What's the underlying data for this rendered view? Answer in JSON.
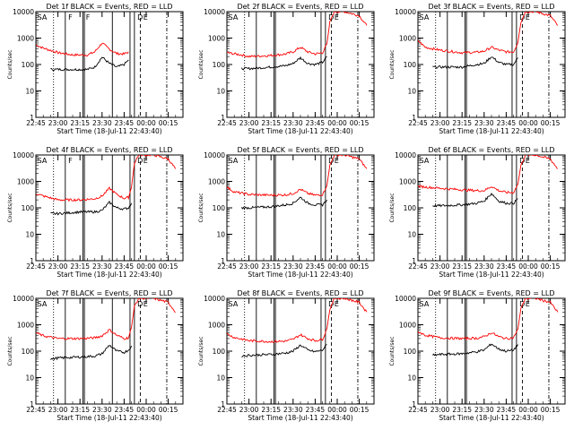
{
  "chart_data": [
    {
      "type": "line",
      "title": "Det 1f BLACK = Events, RED = LLD",
      "xlabel": "Start Time (18-Jul-11 22:43:40)",
      "ylabel": "Counts/sec",
      "yscale": "log",
      "ylim": [
        1,
        10000
      ],
      "xticks": [
        "22:45",
        "23:00",
        "23:15",
        "23:30",
        "23:45",
        "00:00",
        "00:15"
      ],
      "yticks": [
        "1",
        "10",
        "100",
        "1000",
        "10000"
      ],
      "marker_labels": [
        "SA",
        "F",
        "F",
        "D",
        "E"
      ],
      "series": [
        {
          "color": "#ff0000",
          "x": [
            "22:45",
            "22:50",
            "23:00",
            "23:10",
            "23:20",
            "23:25",
            "23:30",
            "23:35",
            "23:40",
            "23:45",
            "23:48"
          ],
          "y": [
            550,
            420,
            280,
            230,
            230,
            300,
            650,
            380,
            260,
            250,
            300
          ]
        },
        {
          "color": "#000000",
          "x": [
            "22:55",
            "23:00",
            "23:10",
            "23:20",
            "23:25",
            "23:30",
            "23:35",
            "23:40",
            "23:45",
            "23:48"
          ],
          "y": [
            65,
            65,
            65,
            65,
            80,
            190,
            110,
            80,
            100,
            150
          ]
        }
      ]
    },
    {
      "type": "line",
      "title": "Det 2f BLACK = Events, RED = LLD",
      "xlabel": "Start Time (18-Jul-11 22:43:40)",
      "ylabel": "Counts/sec",
      "yscale": "log",
      "ylim": [
        1,
        10000
      ],
      "xticks": [
        "22:45",
        "23:00",
        "23:15",
        "23:30",
        "23:45",
        "00:00",
        "00:15"
      ],
      "yticks": [
        "1",
        "10",
        "100",
        "1000",
        "10000"
      ],
      "marker_labels": [
        "SA",
        "D",
        "E"
      ],
      "series": [
        {
          "color": "#ff0000",
          "x": [
            "22:45",
            "22:55",
            "23:00",
            "23:15",
            "23:25",
            "23:30",
            "23:35",
            "23:40",
            "23:45",
            "23:50",
            "23:53",
            "23:55",
            "23:58",
            "00:05",
            "00:15",
            "00:20"
          ],
          "y": [
            280,
            230,
            200,
            220,
            250,
            300,
            450,
            300,
            250,
            280,
            600,
            4000,
            10000,
            10000,
            7000,
            3000
          ]
        },
        {
          "color": "#000000",
          "x": [
            "22:55",
            "23:00",
            "23:15",
            "23:25",
            "23:30",
            "23:35",
            "23:40",
            "23:45",
            "23:50",
            "23:53"
          ],
          "y": [
            70,
            70,
            80,
            90,
            110,
            180,
            110,
            100,
            120,
            200
          ]
        }
      ]
    },
    {
      "type": "line",
      "title": "Det 3f BLACK = Events, RED = LLD",
      "xlabel": "Start Time (18-Jul-11 22:43:40)",
      "ylabel": "Counts/sec",
      "yscale": "log",
      "ylim": [
        1,
        10000
      ],
      "xticks": [
        "22:45",
        "23:00",
        "23:15",
        "23:30",
        "23:45",
        "00:00",
        "00:15"
      ],
      "yticks": [
        "1",
        "10",
        "100",
        "1000",
        "10000"
      ],
      "marker_labels": [
        "SA",
        "D",
        "E"
      ],
      "series": [
        {
          "color": "#ff0000",
          "x": [
            "22:45",
            "22:50",
            "23:00",
            "23:15",
            "23:25",
            "23:30",
            "23:35",
            "23:40",
            "23:45",
            "23:50",
            "23:53",
            "23:55",
            "23:58",
            "00:05",
            "00:15",
            "00:20"
          ],
          "y": [
            800,
            450,
            350,
            280,
            290,
            320,
            450,
            350,
            300,
            300,
            700,
            4000,
            10000,
            10000,
            7000,
            3000
          ]
        },
        {
          "color": "#000000",
          "x": [
            "22:55",
            "23:00",
            "23:15",
            "23:25",
            "23:30",
            "23:35",
            "23:40",
            "23:45",
            "23:50",
            "23:53"
          ],
          "y": [
            80,
            80,
            80,
            100,
            110,
            200,
            120,
            100,
            100,
            180
          ]
        }
      ]
    },
    {
      "type": "line",
      "title": "Det 4f BLACK = Events, RED = LLD",
      "xlabel": "Start Time (18-Jul-11 22:43:40)",
      "ylabel": "Counts/sec",
      "yscale": "log",
      "ylim": [
        1,
        10000
      ],
      "xticks": [
        "22:45",
        "23:00",
        "23:15",
        "23:30",
        "23:45",
        "00:00",
        "00:15"
      ],
      "yticks": [
        "1",
        "10",
        "100",
        "1000",
        "10000"
      ],
      "marker_labels": [
        "SA",
        "F",
        "D",
        "E"
      ],
      "series": [
        {
          "color": "#ff0000",
          "x": [
            "22:45",
            "22:50",
            "23:00",
            "23:15",
            "23:25",
            "23:30",
            "23:35",
            "23:40",
            "23:45",
            "23:48",
            "23:50",
            "23:52",
            "23:55",
            "00:05",
            "00:15",
            "00:20"
          ],
          "y": [
            350,
            280,
            200,
            200,
            220,
            280,
            550,
            320,
            230,
            250,
            600,
            5000,
            10000,
            10000,
            7000,
            3000
          ]
        },
        {
          "color": "#000000",
          "x": [
            "22:55",
            "23:00",
            "23:15",
            "23:25",
            "23:30",
            "23:35",
            "23:40",
            "23:45",
            "23:48",
            "23:50"
          ],
          "y": [
            60,
            60,
            70,
            70,
            80,
            160,
            100,
            90,
            100,
            150
          ]
        }
      ]
    },
    {
      "type": "line",
      "title": "Det 5f BLACK = Events, RED = LLD",
      "xlabel": "Start Time (18-Jul-11 22:43:40)",
      "ylabel": "Counts/sec",
      "yscale": "log",
      "ylim": [
        1,
        10000
      ],
      "xticks": [
        "22:45",
        "23:00",
        "23:15",
        "23:30",
        "23:45",
        "00:00",
        "00:15"
      ],
      "yticks": [
        "1",
        "10",
        "100",
        "1000",
        "10000"
      ],
      "marker_labels": [
        "SA",
        "D",
        "E"
      ],
      "series": [
        {
          "color": "#ff0000",
          "x": [
            "22:45",
            "22:50",
            "23:00",
            "23:15",
            "23:25",
            "23:30",
            "23:35",
            "23:40",
            "23:45",
            "23:50",
            "23:53",
            "23:55",
            "23:58",
            "00:05",
            "00:15",
            "00:20"
          ],
          "y": [
            600,
            400,
            320,
            300,
            310,
            350,
            500,
            350,
            300,
            320,
            700,
            4000,
            10000,
            10000,
            7000,
            3000
          ]
        },
        {
          "color": "#000000",
          "x": [
            "22:55",
            "23:00",
            "23:15",
            "23:25",
            "23:30",
            "23:35",
            "23:40",
            "23:45",
            "23:50",
            "23:53"
          ],
          "y": [
            100,
            100,
            110,
            130,
            150,
            250,
            150,
            130,
            130,
            200
          ]
        }
      ]
    },
    {
      "type": "line",
      "title": "Det 6f BLACK = Events, RED = LLD",
      "xlabel": "Start Time (18-Jul-11 22:43:40)",
      "ylabel": "Counts/sec",
      "yscale": "log",
      "ylim": [
        1,
        10000
      ],
      "xticks": [
        "22:45",
        "23:00",
        "23:15",
        "23:30",
        "23:45",
        "00:00",
        "00:15"
      ],
      "yticks": [
        "1",
        "10",
        "100",
        "1000",
        "10000"
      ],
      "marker_labels": [
        "SA",
        "D",
        "E"
      ],
      "series": [
        {
          "color": "#ff0000",
          "x": [
            "22:45",
            "23:00",
            "23:15",
            "23:25",
            "23:30",
            "23:35",
            "23:40",
            "23:45",
            "23:50",
            "23:53",
            "23:55",
            "23:58",
            "00:05",
            "00:15",
            "00:20"
          ],
          "y": [
            650,
            550,
            480,
            450,
            450,
            650,
            450,
            380,
            380,
            800,
            4000,
            10000,
            10000,
            7000,
            3000
          ]
        },
        {
          "color": "#000000",
          "x": [
            "22:55",
            "23:00",
            "23:15",
            "23:25",
            "23:30",
            "23:35",
            "23:40",
            "23:45",
            "23:50",
            "23:53"
          ],
          "y": [
            120,
            120,
            130,
            150,
            180,
            350,
            180,
            150,
            150,
            220
          ]
        }
      ]
    },
    {
      "type": "line",
      "title": "Det 7f BLACK = Events, RED = LLD",
      "xlabel": "Start Time (18-Jul-11 22:43:40)",
      "ylabel": "Counts/sec",
      "yscale": "log",
      "ylim": [
        1,
        10000
      ],
      "xticks": [
        "22:45",
        "23:00",
        "23:15",
        "23:30",
        "23:45",
        "00:00",
        "00:15"
      ],
      "yticks": [
        "1",
        "10",
        "100",
        "1000",
        "10000"
      ],
      "marker_labels": [
        "SA",
        "D",
        "E"
      ],
      "series": [
        {
          "color": "#ff0000",
          "x": [
            "22:45",
            "22:50",
            "23:00",
            "23:15",
            "23:25",
            "23:30",
            "23:35",
            "23:40",
            "23:45",
            "23:48",
            "23:50",
            "23:52",
            "23:55",
            "00:05",
            "00:15",
            "00:20"
          ],
          "y": [
            500,
            380,
            300,
            300,
            320,
            380,
            650,
            400,
            300,
            320,
            800,
            5000,
            10000,
            10000,
            7000,
            3000
          ]
        },
        {
          "color": "#000000",
          "x": [
            "22:55",
            "23:00",
            "23:15",
            "23:25",
            "23:30",
            "23:35",
            "23:40",
            "23:45",
            "23:48",
            "23:50"
          ],
          "y": [
            50,
            55,
            60,
            65,
            80,
            170,
            100,
            90,
            110,
            160
          ]
        }
      ]
    },
    {
      "type": "line",
      "title": "Det 8f BLACK = Events, RED = LLD",
      "xlabel": "Start Time (18-Jul-11 22:43:40)",
      "ylabel": "Counts/sec",
      "yscale": "log",
      "ylim": [
        1,
        10000
      ],
      "xticks": [
        "22:45",
        "23:00",
        "23:15",
        "23:30",
        "23:45",
        "00:00",
        "00:15"
      ],
      "yticks": [
        "1",
        "10",
        "100",
        "1000",
        "10000"
      ],
      "marker_labels": [
        "SA",
        "D",
        "E"
      ],
      "series": [
        {
          "color": "#ff0000",
          "x": [
            "22:45",
            "22:50",
            "23:00",
            "23:15",
            "23:25",
            "23:30",
            "23:35",
            "23:40",
            "23:45",
            "23:50",
            "23:53",
            "23:55",
            "23:58",
            "00:05",
            "00:15",
            "00:20"
          ],
          "y": [
            450,
            330,
            250,
            230,
            240,
            280,
            420,
            300,
            250,
            280,
            700,
            4000,
            10000,
            10000,
            7000,
            3000
          ]
        },
        {
          "color": "#000000",
          "x": [
            "22:55",
            "23:00",
            "23:15",
            "23:25",
            "23:30",
            "23:35",
            "23:40",
            "23:45",
            "23:50",
            "23:53"
          ],
          "y": [
            65,
            70,
            75,
            85,
            100,
            170,
            110,
            95,
            110,
            180
          ]
        }
      ]
    },
    {
      "type": "line",
      "title": "Det 9f BLACK = Events, RED = LLD",
      "xlabel": "Start Time (18-Jul-11 22:43:40)",
      "ylabel": "Counts/sec",
      "yscale": "log",
      "ylim": [
        1,
        10000
      ],
      "xticks": [
        "22:45",
        "23:00",
        "23:15",
        "23:30",
        "23:45",
        "00:00",
        "00:15"
      ],
      "yticks": [
        "1",
        "10",
        "100",
        "1000",
        "10000"
      ],
      "marker_labels": [
        "SA",
        "D",
        "E"
      ],
      "series": [
        {
          "color": "#ff0000",
          "x": [
            "22:45",
            "22:50",
            "23:00",
            "23:15",
            "23:25",
            "23:30",
            "23:35",
            "23:40",
            "23:45",
            "23:50",
            "23:53",
            "23:55",
            "23:58",
            "00:05",
            "00:15",
            "00:20"
          ],
          "y": [
            550,
            400,
            320,
            300,
            310,
            350,
            500,
            350,
            300,
            320,
            700,
            4000,
            10000,
            10000,
            7000,
            3000
          ]
        },
        {
          "color": "#000000",
          "x": [
            "22:55",
            "23:00",
            "23:15",
            "23:25",
            "23:30",
            "23:35",
            "23:40",
            "23:45",
            "23:50",
            "23:53"
          ],
          "y": [
            70,
            75,
            80,
            95,
            110,
            190,
            120,
            100,
            110,
            180
          ]
        }
      ]
    }
  ]
}
